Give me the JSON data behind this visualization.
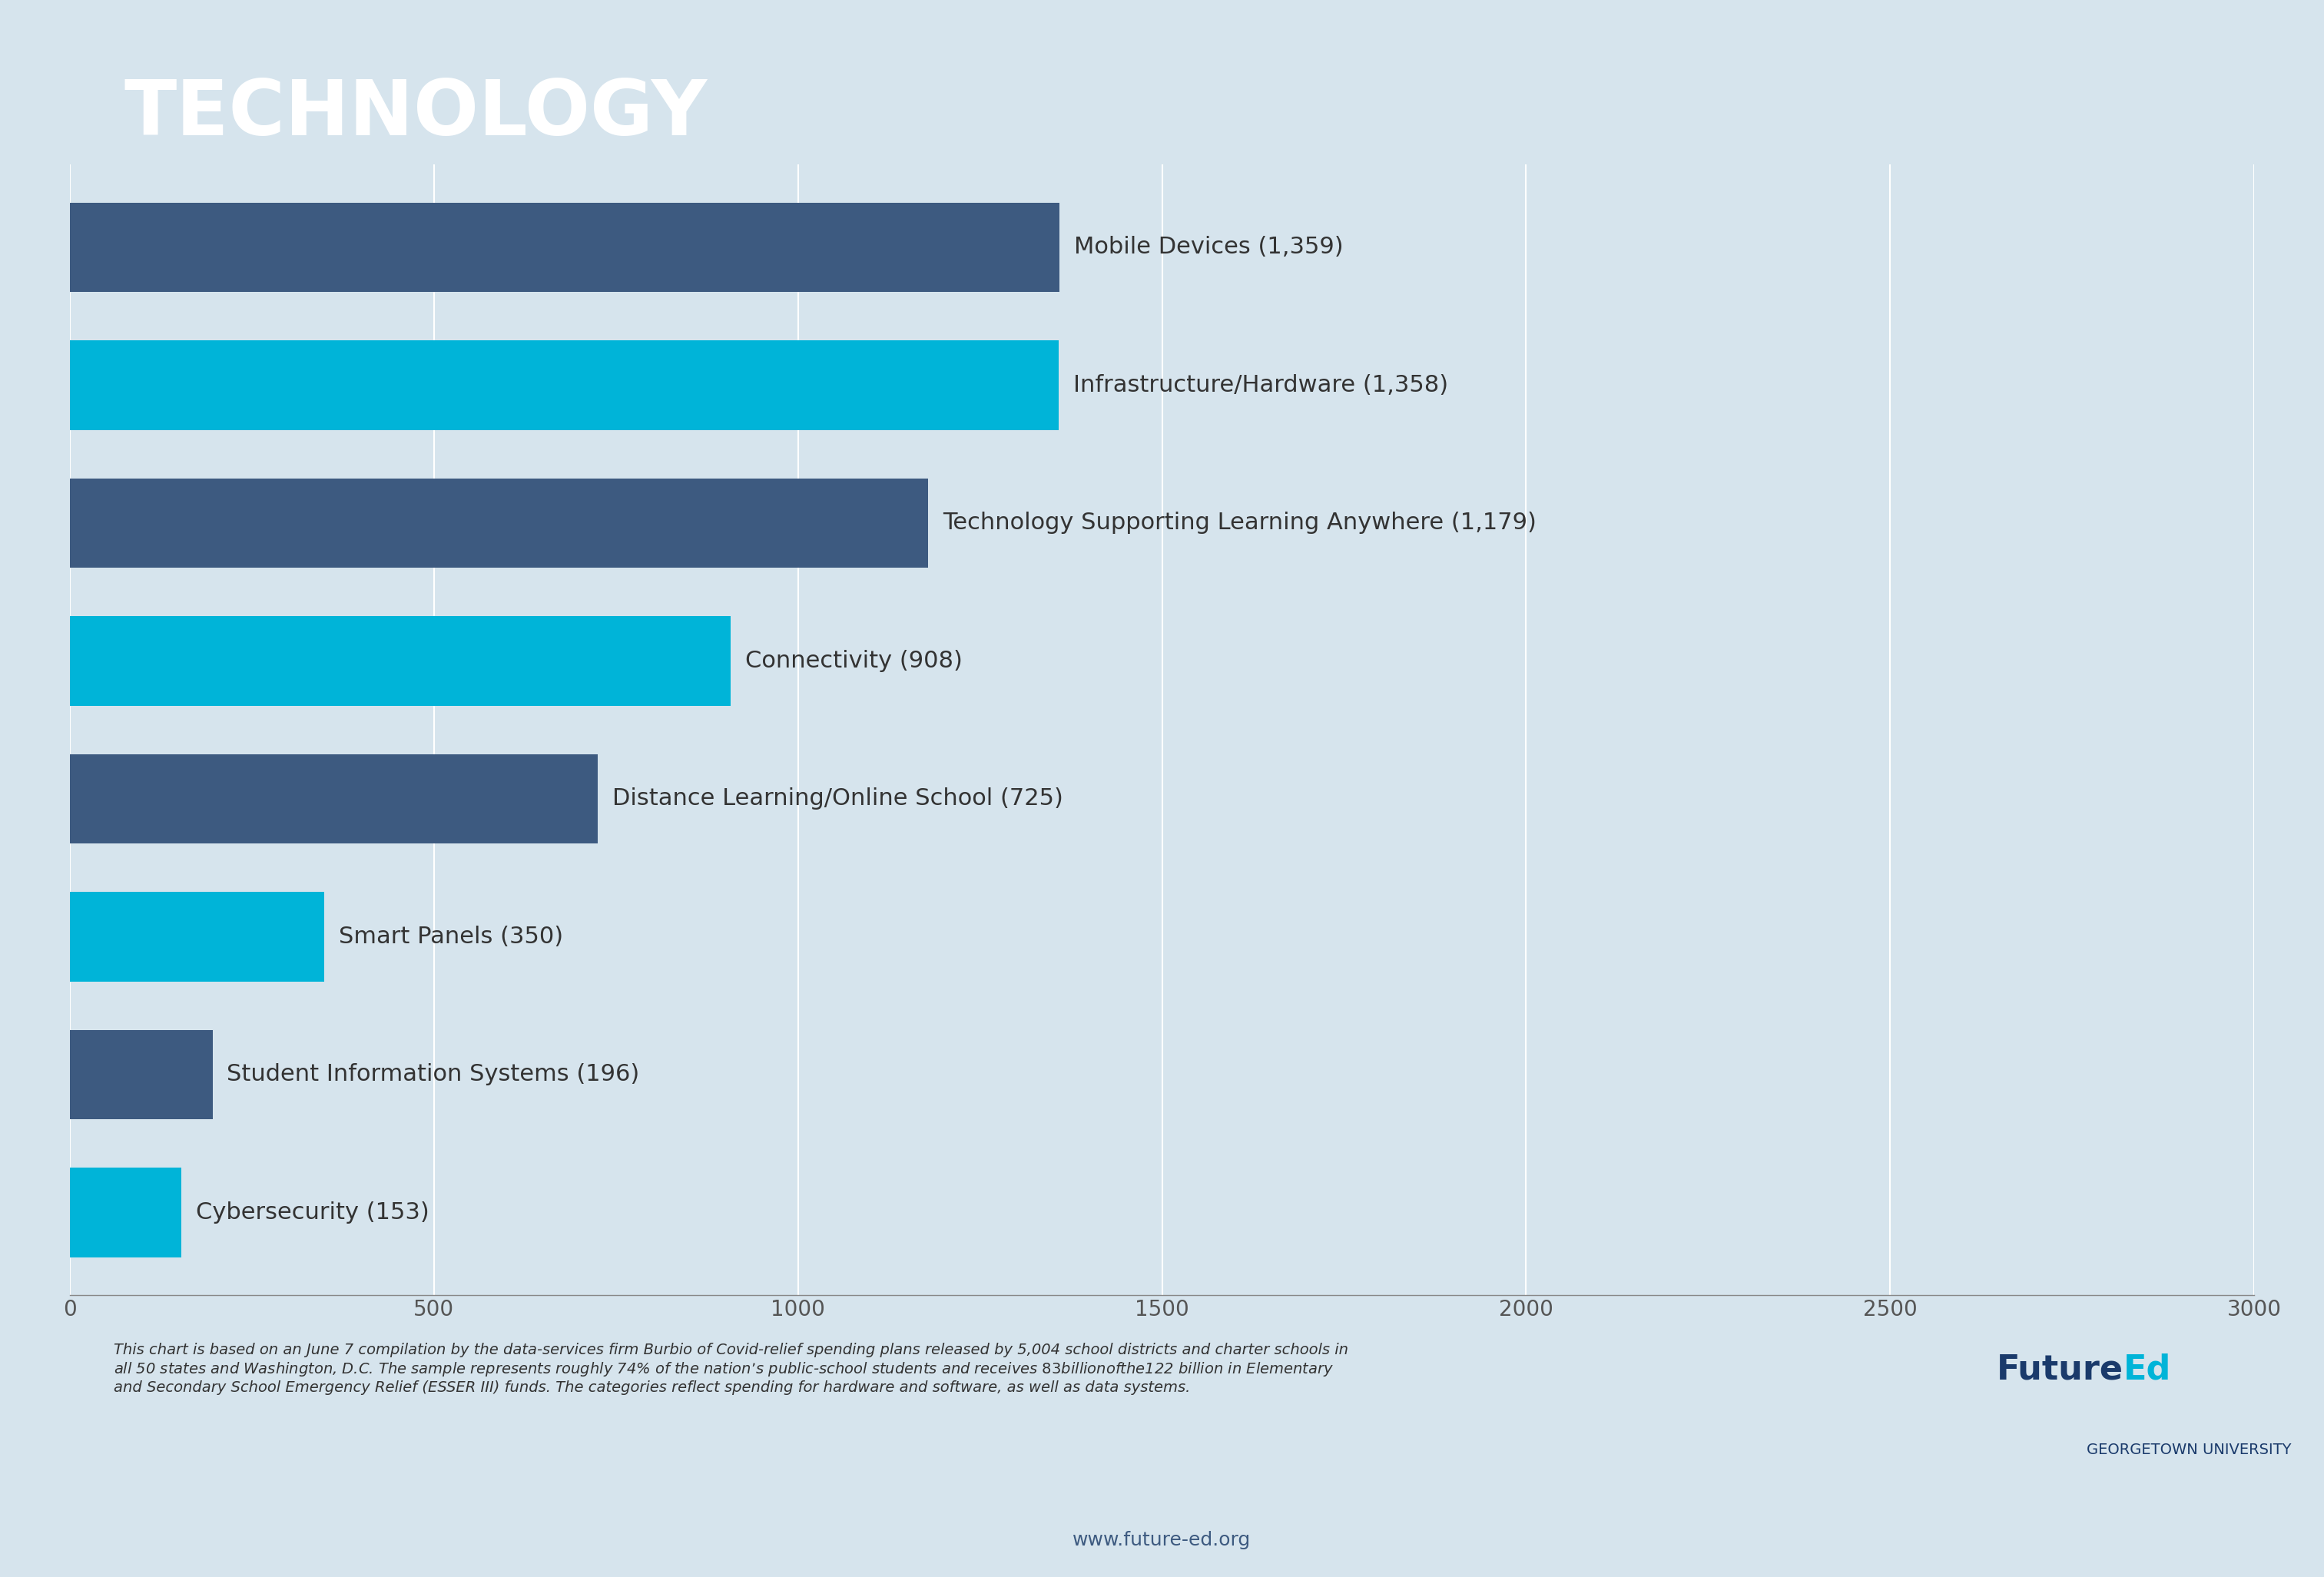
{
  "title": "TECHNOLOGY",
  "title_bg_color": "#0d2240",
  "title_text_color": "#ffffff",
  "chart_bg_color": "#d6e4ed",
  "outer_bg_color": "#d6e4ed",
  "categories": [
    "Mobile Devices (1,359)",
    "Infrastructure/Hardware (1,358)",
    "Technology Supporting Learning Anywhere (1,179)",
    "Connectivity (908)",
    "Distance Learning/Online School (725)",
    "Smart Panels (350)",
    "Student Information Systems (196)",
    "Cybersecurity (153)"
  ],
  "values": [
    1359,
    1358,
    1179,
    908,
    725,
    350,
    196,
    153
  ],
  "bar_colors": [
    "#3d5a80",
    "#00b4d8",
    "#3d5a80",
    "#00b4d8",
    "#3d5a80",
    "#00b4d8",
    "#3d5a80",
    "#00b4d8"
  ],
  "xlim": [
    0,
    3000
  ],
  "xticks": [
    0,
    500,
    1000,
    1500,
    2000,
    2500,
    3000
  ],
  "grid_color": "#ffffff",
  "bar_label_color": "#333333",
  "bar_label_fontsize": 22,
  "tick_label_fontsize": 20,
  "footnote": "This chart is based on an June 7 compilation by the data-services firm Burbio of Covid-relief spending plans released by 5,004 school districts and charter schools in\nall 50 states and Washington, D.C. The sample represents roughly 74% of the nation’s public-school students and receives $83 billion of the $122 billion in Elementary\nand Secondary School Emergency Relief (ESSER III) funds. The categories reflect spending for hardware and software, as well as data systems.",
  "footnote_fontsize": 14,
  "url_text": "www.future-ed.org",
  "url_fontsize": 18,
  "logo_text_future": "FutureEd",
  "logo_text_georgetown": "GEORGETOWN UNIVERSITY",
  "logo_future_color_future": "#1a3a6b",
  "logo_future_color_ed": "#00b4d8",
  "logo_fontsize_future": 32,
  "logo_fontsize_georgetown": 14
}
